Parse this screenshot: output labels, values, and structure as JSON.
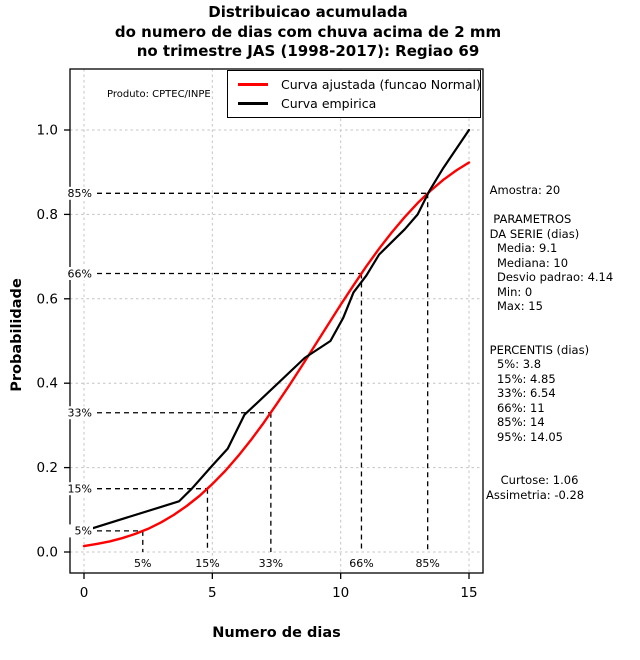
{
  "title": {
    "line1": "Distribuicao acumulada",
    "line2": "do numero de dias com chuva acima de 2 mm",
    "line3": "no trimestre JAS (1998-2017): Regiao 69"
  },
  "produto_label": "Produto: CPTEC/INPE",
  "legend": {
    "items": [
      {
        "label": "Curva ajustada (funcao Normal)",
        "color": "#ff0000"
      },
      {
        "label": "Curva empirica",
        "color": "#000000"
      }
    ]
  },
  "axes": {
    "x_label": "Numero de dias",
    "y_label": "Probabilidade",
    "x_ticks": [
      0,
      5,
      10,
      15
    ],
    "y_ticks": [
      "0.0",
      "0.2",
      "0.4",
      "0.6",
      "0.8",
      "1.0"
    ]
  },
  "sidebar": {
    "lines": [
      " Amostra: 20",
      "",
      "  PARAMETROS",
      " DA SERIE (dias)",
      "   Media: 9.1",
      "   Mediana: 10",
      "   Desvio padrao: 4.14",
      "   Min: 0",
      "   Max: 15",
      "",
      "",
      " PERCENTIS (dias)",
      "   5%: 3.8",
      "   15%: 4.85",
      "   33%: 6.54",
      "   66%: 11",
      "   85%: 14",
      "   95%: 14.05",
      "",
      "",
      "    Curtose: 1.06",
      "Assimetria: -0.28"
    ]
  },
  "chart_data": {
    "type": "line",
    "title": "Distribuicao acumulada do numero de dias com chuva acima de 2 mm no trimestre JAS (1998-2017): Regiao 69",
    "xlabel": "Numero de dias",
    "ylabel": "Probabilidade",
    "xlim": [
      0,
      15
    ],
    "ylim": [
      0,
      1
    ],
    "grid": true,
    "grid_color": "#c4c4c4",
    "legend_position": "top",
    "x_ticks": [
      0,
      5,
      10,
      15
    ],
    "y_ticks": [
      0,
      0.2,
      0.4,
      0.6,
      0.8,
      1.0
    ],
    "series": [
      {
        "name": "Curva ajustada (funcao Normal)",
        "color": "#ff0000",
        "distribution": "Normal",
        "mean": 9.1,
        "sd": 4.14,
        "points": [
          [
            0,
            0.014
          ],
          [
            0.5,
            0.019
          ],
          [
            1,
            0.025
          ],
          [
            1.5,
            0.033
          ],
          [
            2,
            0.043
          ],
          [
            2.5,
            0.055
          ],
          [
            3,
            0.07
          ],
          [
            3.5,
            0.088
          ],
          [
            4,
            0.109
          ],
          [
            4.5,
            0.133
          ],
          [
            5,
            0.161
          ],
          [
            5.5,
            0.192
          ],
          [
            6,
            0.227
          ],
          [
            6.5,
            0.265
          ],
          [
            7,
            0.306
          ],
          [
            7.5,
            0.35
          ],
          [
            8,
            0.395
          ],
          [
            8.5,
            0.442
          ],
          [
            9,
            0.49
          ],
          [
            9.5,
            0.538
          ],
          [
            10,
            0.586
          ],
          [
            10.5,
            0.632
          ],
          [
            11,
            0.677
          ],
          [
            11.5,
            0.719
          ],
          [
            12,
            0.758
          ],
          [
            12.5,
            0.794
          ],
          [
            13,
            0.827
          ],
          [
            13.5,
            0.856
          ],
          [
            14,
            0.882
          ],
          [
            14.5,
            0.904
          ],
          [
            15,
            0.923
          ]
        ]
      },
      {
        "name": "Curva empirica",
        "color": "#000000",
        "points": [
          [
            0,
            0.05
          ],
          [
            3.7,
            0.12
          ],
          [
            4.2,
            0.15
          ],
          [
            5,
            0.205
          ],
          [
            5.6,
            0.245
          ],
          [
            6.25,
            0.325
          ],
          [
            7.56,
            0.4
          ],
          [
            8.6,
            0.46
          ],
          [
            9.6,
            0.5
          ],
          [
            10.1,
            0.555
          ],
          [
            10.5,
            0.615
          ],
          [
            11,
            0.655
          ],
          [
            11.5,
            0.705
          ],
          [
            12,
            0.735
          ],
          [
            12.5,
            0.765
          ],
          [
            13,
            0.8
          ],
          [
            13.45,
            0.855
          ],
          [
            14,
            0.91
          ],
          [
            15,
            1.0
          ]
        ]
      }
    ],
    "percentile_guides": [
      {
        "label": "5%",
        "p": 0.05,
        "x": 2.29
      },
      {
        "label": "15%",
        "p": 0.15,
        "x": 4.81
      },
      {
        "label": "33%",
        "p": 0.33,
        "x": 7.28
      },
      {
        "label": "66%",
        "p": 0.66,
        "x": 10.81
      },
      {
        "label": "85%",
        "p": 0.85,
        "x": 13.39
      }
    ],
    "stats": {
      "amostra": 20,
      "media": 9.1,
      "mediana": 10,
      "desvio_padrao": 4.14,
      "min": 0,
      "max": 15,
      "percentis_dias": {
        "5%": 3.8,
        "15%": 4.85,
        "33%": 6.54,
        "66%": 11,
        "85%": 14,
        "95%": 14.05
      },
      "curtose": 1.06,
      "assimetria": -0.28
    }
  }
}
